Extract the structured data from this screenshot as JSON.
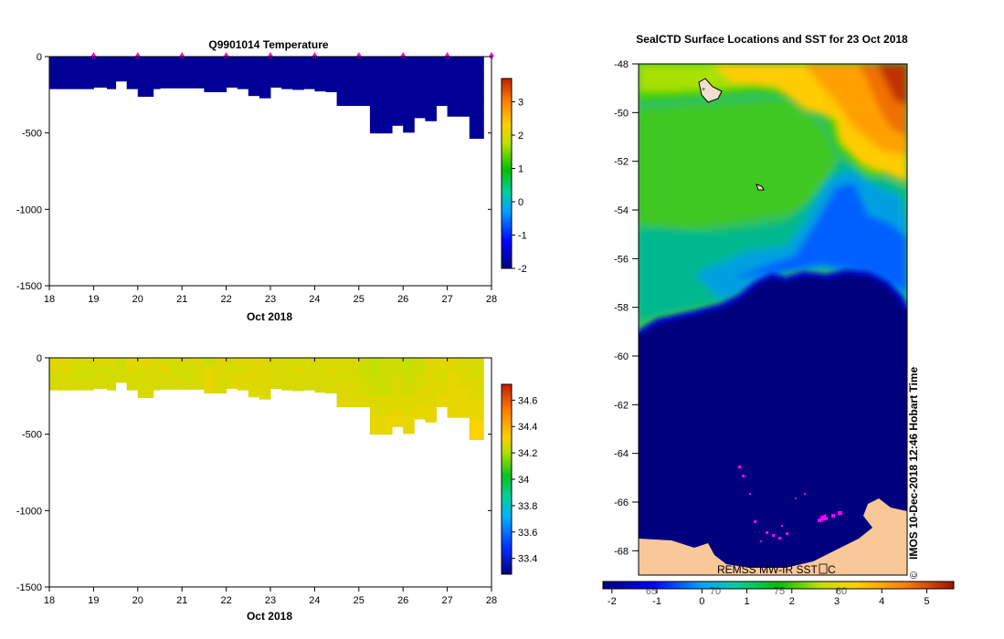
{
  "chart_data": [
    {
      "type": "heatmap",
      "id": "temp",
      "title": "Q9901014  Temperature",
      "xlabel": "Oct 2018",
      "ylabel": "",
      "x_ticks": [
        "18",
        "19",
        "20",
        "21",
        "22",
        "23",
        "24",
        "25",
        "26",
        "27",
        "28"
      ],
      "xlim": [
        18,
        28
      ],
      "y_ticks": [
        "0",
        "-500",
        "-1000",
        "-1500"
      ],
      "ylim": [
        -1500,
        0
      ],
      "profile_days": [
        18.0,
        18.5,
        19.0,
        19.3,
        19.5,
        19.75,
        20.0,
        20.35,
        20.5,
        20.75,
        21.0,
        21.25,
        21.5,
        21.75,
        22.0,
        22.25,
        22.5,
        22.75,
        23.0,
        23.25,
        23.5,
        23.75,
        24.0,
        24.25,
        24.5,
        25.0,
        25.25,
        25.5,
        25.75,
        26.0,
        26.25,
        26.5,
        26.75,
        27.0,
        27.25,
        27.5
      ],
      "profile_depths": [
        210,
        210,
        200,
        210,
        160,
        210,
        260,
        210,
        205,
        205,
        205,
        205,
        230,
        230,
        200,
        210,
        255,
        270,
        200,
        210,
        215,
        210,
        225,
        230,
        320,
        320,
        500,
        500,
        450,
        495,
        400,
        420,
        320,
        390,
        390,
        535
      ],
      "surface_markers": [
        19,
        20,
        21,
        22,
        23,
        24,
        25,
        26,
        27,
        28
      ],
      "colorbar": {
        "min": -2,
        "max": 3.7,
        "ticks": [
          "3",
          "2",
          "1",
          "0",
          "-1",
          "-2"
        ]
      },
      "values_note": "near-uniform about -1.8"
    },
    {
      "type": "heatmap",
      "id": "salinity",
      "title": "",
      "xlabel": "Oct 2018",
      "x_ticks": [
        "18",
        "19",
        "20",
        "21",
        "22",
        "23",
        "24",
        "25",
        "26",
        "27",
        "28"
      ],
      "xlim": [
        18,
        28
      ],
      "y_ticks": [
        "0",
        "-500",
        "-1000",
        "-1500"
      ],
      "ylim": [
        -1500,
        0
      ],
      "column_values": [
        [
          34.3,
          34.3,
          34.28,
          34.28
        ],
        [
          34.28,
          34.27,
          34.27,
          34.28
        ],
        [
          34.3,
          34.27,
          34.28,
          34.28
        ],
        [
          34.3,
          34.27,
          34.27,
          34.28
        ],
        [
          34.26,
          34.27,
          34.27,
          34.28
        ],
        [
          34.32,
          34.3,
          34.28,
          34.28
        ],
        [
          34.3,
          34.28,
          34.28,
          34.28
        ],
        [
          34.28,
          34.28,
          34.28,
          34.28
        ],
        [
          34.28,
          34.3,
          34.28,
          34.28
        ],
        [
          34.28,
          34.27,
          34.28,
          34.28
        ],
        [
          34.28,
          34.27,
          34.27,
          34.28
        ],
        [
          34.3,
          34.28,
          34.28,
          34.28
        ],
        [
          34.26,
          34.32,
          34.32,
          34.32
        ],
        [
          34.3,
          34.3,
          34.28,
          34.28
        ],
        [
          34.28,
          34.28,
          34.3,
          34.3
        ],
        [
          34.3,
          34.28,
          34.3,
          34.3
        ],
        [
          34.3,
          34.3,
          34.3,
          34.3
        ],
        [
          34.3,
          34.3,
          34.3,
          34.3
        ],
        [
          34.28,
          34.28,
          34.28,
          34.28
        ],
        [
          34.28,
          34.28,
          34.28,
          34.28
        ],
        [
          34.28,
          34.3,
          34.28,
          34.28
        ],
        [
          34.28,
          34.28,
          34.28,
          34.28
        ],
        [
          34.28,
          34.28,
          34.28,
          34.28
        ],
        [
          34.28,
          34.3,
          34.28,
          34.28
        ],
        [
          34.28,
          34.28,
          34.3,
          34.3
        ],
        [
          34.26,
          34.26,
          34.28,
          34.3
        ],
        [
          34.24,
          34.26,
          34.3,
          34.32
        ],
        [
          34.26,
          34.26,
          34.3,
          34.32
        ],
        [
          34.26,
          34.28,
          34.3,
          34.32
        ],
        [
          34.24,
          34.26,
          34.3,
          34.32
        ],
        [
          34.26,
          34.28,
          34.3,
          34.32
        ],
        [
          34.3,
          34.3,
          34.3,
          34.32
        ],
        [
          34.3,
          34.28,
          34.3,
          34.32
        ],
        [
          34.3,
          34.32,
          34.32,
          34.32
        ],
        [
          34.28,
          34.3,
          34.32,
          34.32
        ],
        [
          34.28,
          34.3,
          34.32,
          34.36
        ]
      ],
      "colorbar": {
        "min": 33.28,
        "max": 34.72,
        "ticks": [
          "34.6",
          "34.4",
          "34.2",
          "34",
          "33.8",
          "33.6",
          "33.4"
        ]
      }
    },
    {
      "type": "heatmap",
      "id": "sst_map",
      "title": "SealCTD Surface Locations and SST for 23 Oct 2018",
      "y_ticks": [
        "-48",
        "-50",
        "-52",
        "-54",
        "-56",
        "-58",
        "-60",
        "-62",
        "-64",
        "-66",
        "-68"
      ],
      "ylim": [
        -69,
        -48
      ],
      "colorbar": {
        "min": -2.2,
        "max": 5.6,
        "ticks": [
          "-2",
          "-1",
          "0",
          "1",
          "2",
          "3",
          "4",
          "5"
        ]
      },
      "credit": "IMOS 10-Dec-2018 12:46 Hobart Time",
      "copyright": "©",
      "source": "REMSS MW-IR SST",
      "source_suffix": "C",
      "faint_labels": [
        "65",
        "70",
        "75",
        "80"
      ]
    }
  ],
  "colors": {
    "background": "#ffffff",
    "marker": "#ff00ff",
    "land": "#f9c898",
    "ocean_cold": "#00007f"
  }
}
